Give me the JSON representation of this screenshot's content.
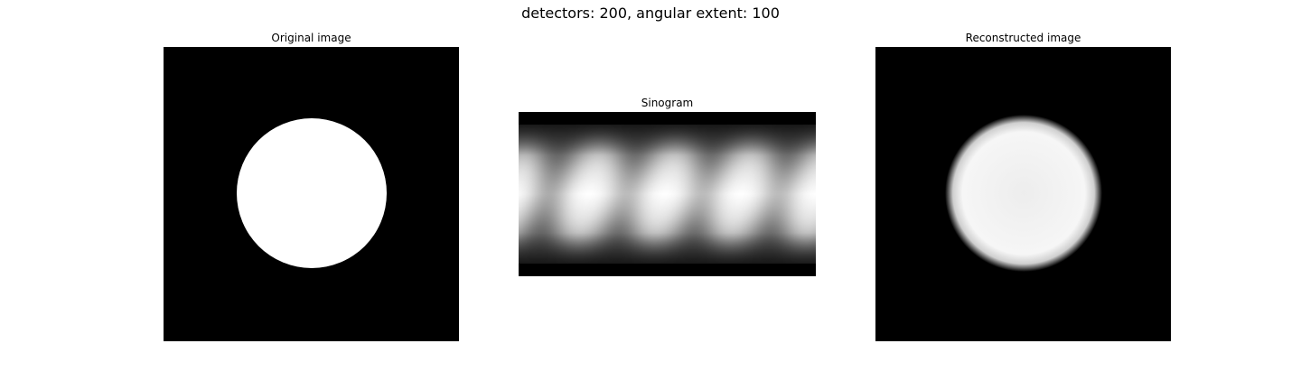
{
  "figure": {
    "suptitle": "detectors: 200, angular extent: 100"
  },
  "panels": {
    "original": {
      "title": "Original image"
    },
    "sinogram": {
      "title": "Sinogram"
    },
    "reconstructed": {
      "title": "Reconstructed image"
    }
  },
  "colors": {
    "background": "#000000",
    "foreground": "#ffffff",
    "reconstruction_fill": "#f0f0f0"
  }
}
